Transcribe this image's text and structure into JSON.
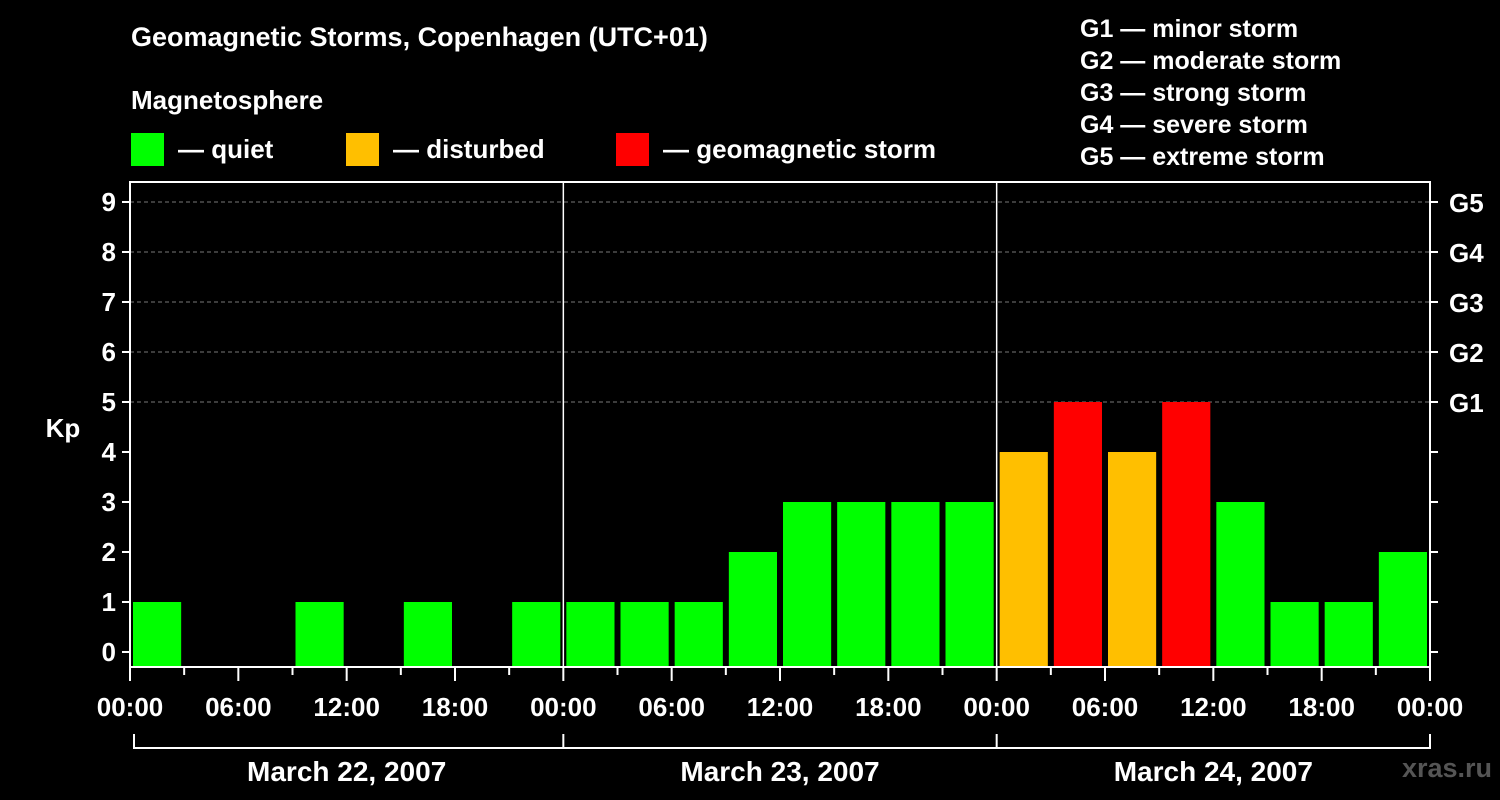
{
  "title": "Geomagnetic Storms, Copenhagen (UTC+01)",
  "legend": {
    "heading": "Magnetosphere",
    "items": [
      {
        "label": "— quiet",
        "color": "#00ff00"
      },
      {
        "label": "— disturbed",
        "color": "#ffbf00"
      },
      {
        "label": "— geomagnetic storm",
        "color": "#ff0000"
      }
    ]
  },
  "storm_scale": [
    "G1 — minor storm",
    "G2 — moderate storm",
    "G3 — strong storm",
    "G4 — severe storm",
    "G5 — extreme storm"
  ],
  "watermark": "xras.ru",
  "chart_data": {
    "type": "bar",
    "ylabel": "Kp",
    "ylim": [
      0,
      9
    ],
    "y_ticks": [
      "0",
      "1",
      "2",
      "3",
      "4",
      "5",
      "6",
      "7",
      "8",
      "9"
    ],
    "right_ticks": [
      {
        "kp": 5,
        "label": "G1"
      },
      {
        "kp": 6,
        "label": "G2"
      },
      {
        "kp": 7,
        "label": "G3"
      },
      {
        "kp": 8,
        "label": "G4"
      },
      {
        "kp": 9,
        "label": "G5"
      }
    ],
    "x_ticks": [
      "00:00",
      "06:00",
      "12:00",
      "18:00",
      "00:00",
      "06:00",
      "12:00",
      "18:00",
      "00:00",
      "06:00",
      "12:00",
      "18:00",
      "00:00"
    ],
    "days": [
      "March 22, 2007",
      "March 23, 2007",
      "March 24, 2007"
    ],
    "grid": true,
    "values": [
      1,
      0,
      0,
      1,
      0,
      1,
      0,
      1,
      1,
      1,
      1,
      2,
      3,
      3,
      3,
      3,
      4,
      5,
      4,
      5,
      3,
      1,
      1,
      2
    ],
    "levels": [
      "quiet",
      "quiet",
      "quiet",
      "quiet",
      "quiet",
      "quiet",
      "quiet",
      "quiet",
      "quiet",
      "quiet",
      "quiet",
      "quiet",
      "quiet",
      "quiet",
      "quiet",
      "quiet",
      "disturbed",
      "storm",
      "disturbed",
      "storm",
      "quiet",
      "quiet",
      "quiet",
      "quiet"
    ],
    "level_colors": {
      "quiet": "#00ff00",
      "disturbed": "#ffbf00",
      "storm": "#ff0000"
    }
  }
}
